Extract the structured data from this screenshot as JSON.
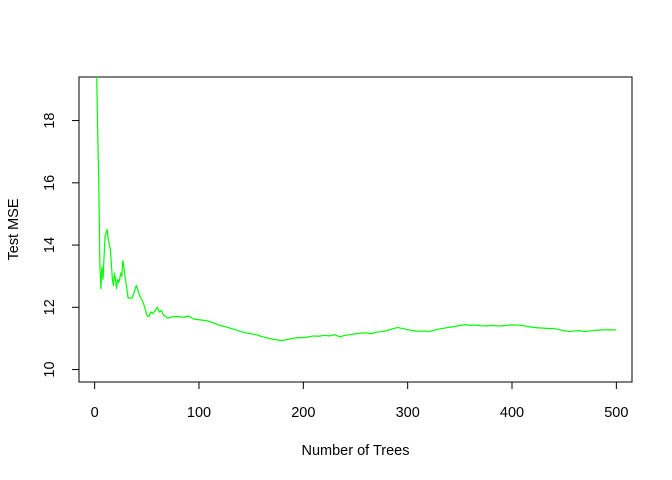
{
  "chart_data": {
    "type": "line",
    "title": "",
    "xlabel": "Number of Trees",
    "ylabel": "Test MSE",
    "xlim": [
      -15,
      515
    ],
    "ylim": [
      9.6,
      19.4
    ],
    "xticks": [
      0,
      100,
      200,
      300,
      400,
      500
    ],
    "yticks": [
      10,
      12,
      14,
      16,
      18
    ],
    "grid": false,
    "legend": "none",
    "series": [
      {
        "color": "#00ff00",
        "x": [
          1,
          2,
          3,
          4,
          5,
          6,
          7,
          8,
          9,
          10,
          11,
          12,
          13,
          14,
          15,
          16,
          17,
          18,
          19,
          20,
          21,
          22,
          23,
          24,
          25,
          26,
          27,
          28,
          29,
          30,
          32,
          34,
          36,
          38,
          40,
          42,
          44,
          46,
          48,
          50,
          52,
          54,
          56,
          58,
          60,
          62,
          64,
          66,
          68,
          70,
          75,
          80,
          85,
          90,
          95,
          100,
          105,
          110,
          115,
          120,
          125,
          130,
          135,
          140,
          145,
          150,
          155,
          160,
          165,
          170,
          175,
          180,
          185,
          190,
          195,
          200,
          205,
          210,
          215,
          220,
          225,
          230,
          235,
          240,
          245,
          250,
          255,
          260,
          265,
          270,
          275,
          280,
          285,
          290,
          295,
          300,
          305,
          310,
          315,
          320,
          325,
          330,
          335,
          340,
          345,
          350,
          355,
          360,
          365,
          370,
          375,
          380,
          385,
          390,
          395,
          400,
          405,
          410,
          415,
          420,
          425,
          430,
          435,
          440,
          445,
          450,
          455,
          460,
          465,
          470,
          475,
          480,
          485,
          490,
          495,
          500
        ],
        "values": [
          19.4,
          19.4,
          17.5,
          15.9,
          13.4,
          12.6,
          13.3,
          12.9,
          13.6,
          14.3,
          14.4,
          14.5,
          14.2,
          14.0,
          13.9,
          13.4,
          12.9,
          12.7,
          13.1,
          12.9,
          12.6,
          12.9,
          12.8,
          12.9,
          13.1,
          13.0,
          13.5,
          13.3,
          13.0,
          12.8,
          12.3,
          12.3,
          12.3,
          12.5,
          12.7,
          12.5,
          12.3,
          12.2,
          12.0,
          11.75,
          11.7,
          11.85,
          11.8,
          11.9,
          12.0,
          11.85,
          11.9,
          11.75,
          11.7,
          11.65,
          11.7,
          11.7,
          11.68,
          11.72,
          11.62,
          11.6,
          11.58,
          11.55,
          11.48,
          11.42,
          11.38,
          11.33,
          11.28,
          11.22,
          11.18,
          11.15,
          11.12,
          11.06,
          11.02,
          10.98,
          10.95,
          10.93,
          10.97,
          11.0,
          11.03,
          11.02,
          11.05,
          11.08,
          11.07,
          11.1,
          11.08,
          11.12,
          11.05,
          11.1,
          11.12,
          11.15,
          11.17,
          11.18,
          11.15,
          11.2,
          11.22,
          11.25,
          11.3,
          11.35,
          11.32,
          11.28,
          11.25,
          11.23,
          11.24,
          11.22,
          11.26,
          11.3,
          11.33,
          11.36,
          11.38,
          11.42,
          11.44,
          11.42,
          11.43,
          11.41,
          11.4,
          11.42,
          11.41,
          11.4,
          11.42,
          11.44,
          11.43,
          11.42,
          11.38,
          11.36,
          11.34,
          11.33,
          11.32,
          11.32,
          11.28,
          11.25,
          11.22,
          11.24,
          11.25,
          11.22,
          11.24,
          11.26,
          11.27,
          11.28,
          11.27,
          11.28
        ]
      }
    ]
  }
}
